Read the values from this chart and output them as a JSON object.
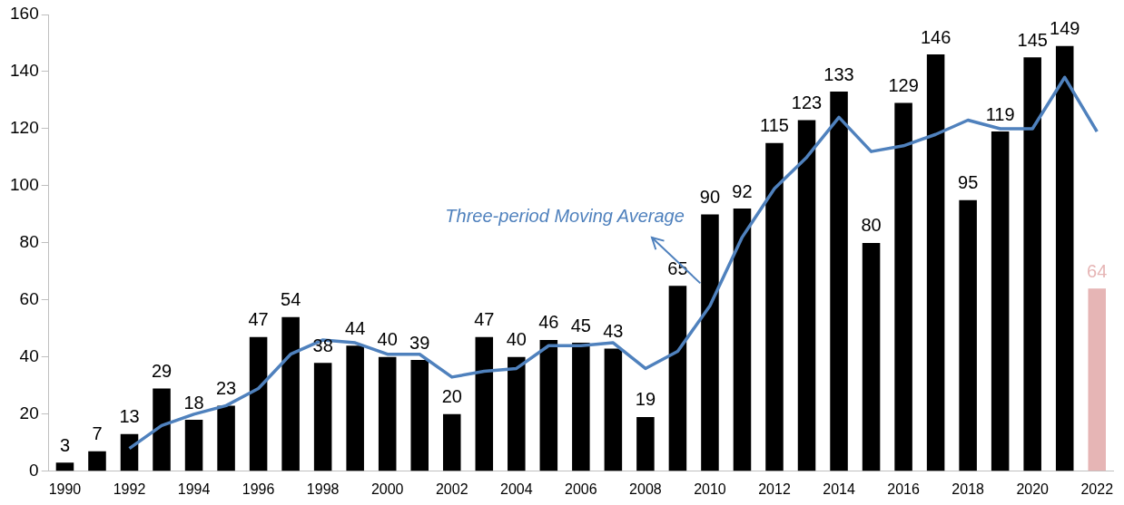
{
  "chart_data": {
    "type": "bar",
    "categories": [
      "1990",
      null,
      "1992",
      null,
      "1994",
      null,
      "1996",
      null,
      "1998",
      null,
      "2000",
      null,
      "2002",
      null,
      "2004",
      null,
      "2006",
      null,
      "2008",
      null,
      "2010",
      null,
      "2012",
      null,
      "2014",
      null,
      "2016",
      null,
      "2018",
      null,
      "2020",
      null,
      "2022"
    ],
    "series": [
      {
        "colors": [
          "#000000",
          "#000000",
          "#000000",
          "#000000",
          "#000000",
          "#000000",
          "#000000",
          "#000000",
          "#000000",
          "#000000",
          "#000000",
          "#000000",
          "#000000",
          "#000000",
          "#000000",
          "#000000",
          "#000000",
          "#000000",
          "#000000",
          "#000000",
          "#000000",
          "#000000",
          "#000000",
          "#000000",
          "#000000",
          "#000000",
          "#000000",
          "#000000",
          "#000000",
          "#000000",
          "#000000",
          "#000000",
          "#e6b5b5"
        ],
        "values": [
          3,
          7,
          13,
          29,
          18,
          23,
          47,
          54,
          38,
          44,
          40,
          39,
          20,
          47,
          40,
          46,
          45,
          43,
          19,
          65,
          90,
          92,
          115,
          123,
          133,
          80,
          129,
          146,
          95,
          119,
          145,
          149,
          64
        ],
        "value_labels": [
          "3",
          "7",
          "13",
          "29",
          "18",
          "23",
          "47",
          "54",
          "38",
          "44",
          "40",
          "39",
          "20",
          "47",
          "40",
          "46",
          "45",
          "43",
          "19",
          "65",
          "90",
          "92",
          "115",
          "123",
          "133",
          "80",
          "129",
          "146",
          "95",
          "119",
          "145",
          "149",
          "64"
        ]
      },
      {
        "type": "line",
        "name": "Three-period Moving Average",
        "color": "#4f81bd",
        "values": [
          null,
          null,
          8,
          16,
          20,
          23,
          29,
          41,
          46,
          45,
          41,
          41,
          33,
          35,
          36,
          44,
          44,
          45,
          36,
          42,
          58,
          82,
          99,
          110,
          124,
          112,
          114,
          118,
          123,
          120,
          120,
          138,
          119
        ]
      }
    ],
    "ylim": [
      0,
      160
    ],
    "yticks": [
      0,
      20,
      40,
      60,
      80,
      100,
      120,
      140,
      160
    ],
    "grid": false,
    "legend": false,
    "marker": "none",
    "line_style": "solid"
  }
}
